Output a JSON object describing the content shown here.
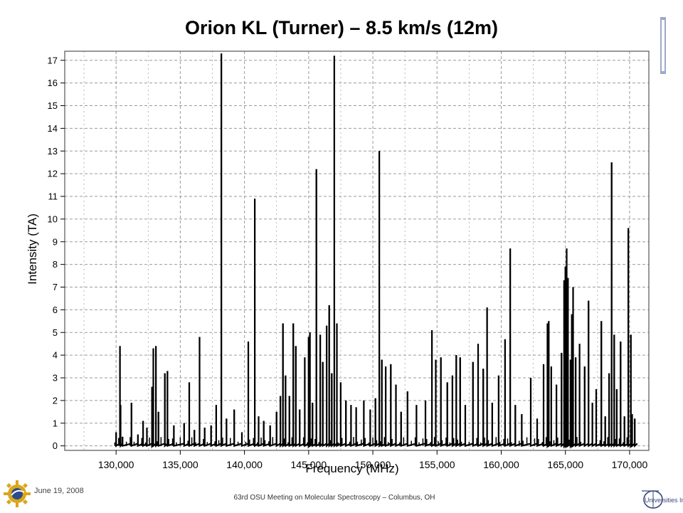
{
  "footer": {
    "date": "June 19, 2008",
    "meeting": "63rd OSU Meeting on Molecular Spectroscopy – Columbus, OH",
    "right_logo_text": "Universities Inc"
  },
  "chart_data": {
    "type": "line",
    "title": "Orion KL (Turner) – 8.5 km/s (12m)",
    "xlabel": "Frequency (MHz)",
    "ylabel": "Intensity (TA)",
    "xlim": [
      126000,
      171500
    ],
    "ylim": [
      -0.2,
      17.4
    ],
    "xticks": [
      130000,
      135000,
      140000,
      145000,
      150000,
      155000,
      160000,
      165000,
      170000
    ],
    "xtick_labels": [
      "130,000",
      "135,000",
      "140,000",
      "145,000",
      "150,000",
      "155,000",
      "160,000",
      "165,000",
      "170,000"
    ],
    "yticks": [
      0,
      1,
      2,
      3,
      4,
      5,
      6,
      7,
      8,
      9,
      10,
      11,
      12,
      13,
      14,
      15,
      16,
      17
    ],
    "grid": true,
    "legend": "none",
    "series": [
      {
        "line_color": "#000000",
        "x_range": [
          129900,
          170600
        ],
        "baseline": 0.1,
        "peaks": [
          [
            130000,
            0.6
          ],
          [
            130300,
            4.4
          ],
          [
            130350,
            1.8
          ],
          [
            130500,
            0.4
          ],
          [
            131200,
            1.9
          ],
          [
            131700,
            0.5
          ],
          [
            132100,
            1.1
          ],
          [
            132400,
            0.8
          ],
          [
            132800,
            2.6
          ],
          [
            132900,
            4.3
          ],
          [
            133100,
            4.4
          ],
          [
            133300,
            1.5
          ],
          [
            133800,
            3.2
          ],
          [
            134000,
            3.3
          ],
          [
            134500,
            0.9
          ],
          [
            135300,
            1.0
          ],
          [
            135700,
            2.8
          ],
          [
            136100,
            0.7
          ],
          [
            136500,
            4.8
          ],
          [
            136900,
            0.8
          ],
          [
            137400,
            0.9
          ],
          [
            137800,
            1.8
          ],
          [
            138200,
            17.3
          ],
          [
            138600,
            1.2
          ],
          [
            139200,
            1.6
          ],
          [
            139800,
            0.6
          ],
          [
            140300,
            4.6
          ],
          [
            140800,
            10.9
          ],
          [
            141100,
            1.3
          ],
          [
            141500,
            1.1
          ],
          [
            142000,
            0.9
          ],
          [
            142500,
            1.5
          ],
          [
            142800,
            2.2
          ],
          [
            143000,
            5.4
          ],
          [
            143200,
            3.1
          ],
          [
            143500,
            2.2
          ],
          [
            143800,
            5.4
          ],
          [
            144000,
            4.4
          ],
          [
            144300,
            1.6
          ],
          [
            144700,
            3.9
          ],
          [
            145000,
            4.8
          ],
          [
            145100,
            5.0
          ],
          [
            145300,
            1.9
          ],
          [
            145600,
            12.2
          ],
          [
            145900,
            4.9
          ],
          [
            146100,
            3.7
          ],
          [
            146400,
            5.3
          ],
          [
            146600,
            6.2
          ],
          [
            146800,
            3.2
          ],
          [
            147000,
            17.2
          ],
          [
            147200,
            5.4
          ],
          [
            147500,
            2.8
          ],
          [
            147900,
            2.0
          ],
          [
            148300,
            1.8
          ],
          [
            148700,
            1.7
          ],
          [
            149300,
            2.0
          ],
          [
            149800,
            1.6
          ],
          [
            150200,
            2.1
          ],
          [
            150500,
            13.0
          ],
          [
            150700,
            3.8
          ],
          [
            151000,
            3.5
          ],
          [
            151400,
            3.6
          ],
          [
            151800,
            2.7
          ],
          [
            152200,
            1.5
          ],
          [
            152700,
            2.4
          ],
          [
            153400,
            1.8
          ],
          [
            154100,
            2.0
          ],
          [
            154600,
            5.1
          ],
          [
            154900,
            3.8
          ],
          [
            155300,
            3.9
          ],
          [
            155800,
            2.8
          ],
          [
            156200,
            3.1
          ],
          [
            156500,
            4.0
          ],
          [
            156800,
            3.9
          ],
          [
            157200,
            1.8
          ],
          [
            157800,
            3.7
          ],
          [
            158200,
            4.5
          ],
          [
            158600,
            3.4
          ],
          [
            158900,
            6.1
          ],
          [
            159300,
            1.9
          ],
          [
            159800,
            3.1
          ],
          [
            160300,
            4.7
          ],
          [
            160700,
            8.7
          ],
          [
            161100,
            1.8
          ],
          [
            161600,
            1.4
          ],
          [
            162300,
            3.0
          ],
          [
            162800,
            1.2
          ],
          [
            163300,
            3.6
          ],
          [
            163600,
            5.4
          ],
          [
            163700,
            5.5
          ],
          [
            163900,
            3.5
          ],
          [
            164300,
            2.7
          ],
          [
            164700,
            4.1
          ],
          [
            164900,
            7.3
          ],
          [
            165000,
            7.9
          ],
          [
            165100,
            8.7
          ],
          [
            165200,
            7.4
          ],
          [
            165400,
            3.8
          ],
          [
            165500,
            5.8
          ],
          [
            165600,
            7.0
          ],
          [
            165800,
            3.9
          ],
          [
            166100,
            4.5
          ],
          [
            166500,
            3.5
          ],
          [
            166800,
            6.4
          ],
          [
            167100,
            1.9
          ],
          [
            167400,
            2.5
          ],
          [
            167800,
            5.5
          ],
          [
            168100,
            1.3
          ],
          [
            168400,
            3.2
          ],
          [
            168600,
            12.5
          ],
          [
            168800,
            4.9
          ],
          [
            169000,
            2.5
          ],
          [
            169300,
            4.6
          ],
          [
            169600,
            1.3
          ],
          [
            169900,
            9.6
          ],
          [
            170100,
            4.9
          ],
          [
            170200,
            1.4
          ],
          [
            170400,
            1.2
          ]
        ]
      }
    ]
  }
}
